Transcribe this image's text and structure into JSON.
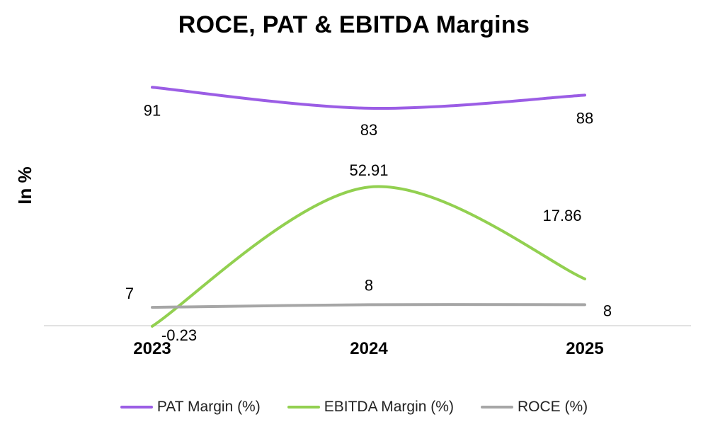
{
  "chart_data": {
    "type": "line",
    "title": "ROCE, PAT & EBITDA Margins",
    "xlabel": "",
    "ylabel": "In %",
    "categories": [
      "2023",
      "2024",
      "2025"
    ],
    "series": [
      {
        "name": "PAT Margin (%)",
        "values": [
          91,
          83,
          88
        ],
        "labels": [
          "91",
          "83",
          "88"
        ],
        "color": "#9b5de5"
      },
      {
        "name": "EBITDA Margin (%)",
        "values": [
          -0.23,
          52.91,
          17.86
        ],
        "labels": [
          "-0.23",
          "52.91",
          "17.86"
        ],
        "color": "#92d050"
      },
      {
        "name": "ROCE (%)",
        "values": [
          7,
          8,
          8
        ],
        "labels": [
          "7",
          "8",
          "8"
        ],
        "color": "#a6a6a6"
      }
    ],
    "ylim": [
      0,
      100
    ],
    "grid": false,
    "legend": "bottom"
  }
}
